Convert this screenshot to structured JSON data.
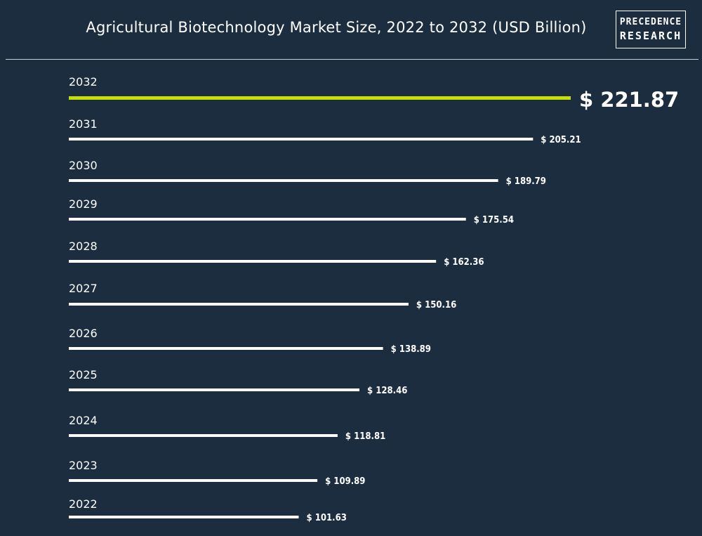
{
  "chart_data": {
    "type": "bar",
    "orientation": "horizontal",
    "title": "Agricultural Biotechnology Market Size, 2022 to 2032 (USD Billion)",
    "categories": [
      "2032",
      "2031",
      "2030",
      "2029",
      "2028",
      "2027",
      "2026",
      "2025",
      "2024",
      "2023",
      "2022"
    ],
    "values": [
      221.87,
      205.21,
      189.79,
      175.54,
      162.36,
      150.16,
      138.89,
      128.46,
      118.81,
      109.89,
      101.63
    ],
    "value_labels": [
      "$ 221.87",
      "$ 205.21",
      "$ 189.79",
      "$ 175.54",
      "$ 162.36",
      "$ 150.16",
      "$ 138.89",
      "$ 128.46",
      "$ 118.81",
      "$ 109.89",
      "$ 101.63"
    ],
    "highlight_category": "2032",
    "colors": {
      "bar": "#ffffff",
      "highlight": "#c5e000",
      "background": "#1c2d3f"
    },
    "xlabel": "",
    "ylabel": "",
    "grid": false,
    "legend": "none"
  },
  "logo": {
    "line1": "PRECEDENCE",
    "line2": "RESEARCH"
  }
}
